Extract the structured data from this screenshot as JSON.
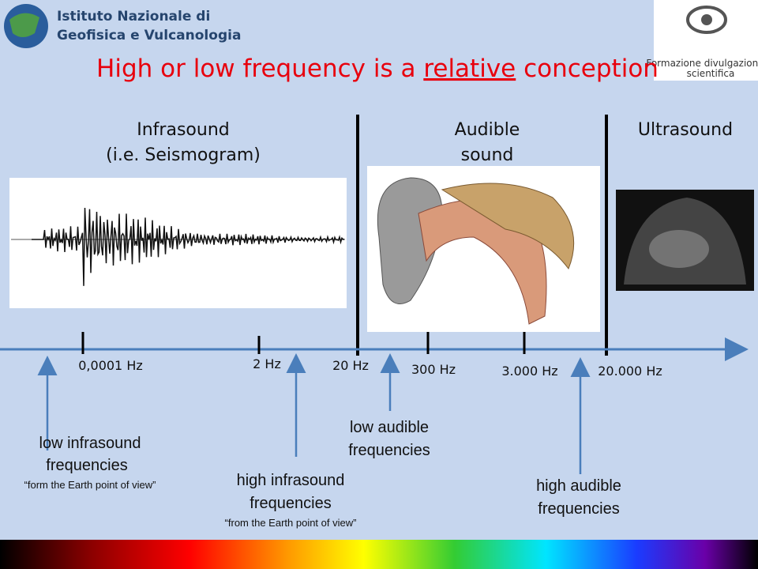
{
  "header": {
    "institute": [
      "Istituto Nazionale di",
      "Geofisica e Vulcanologia"
    ],
    "badge": [
      "Formazione divulgazione",
      "scientifica"
    ]
  },
  "title": {
    "before": "High or low frequency  is a ",
    "emphasis": "relative",
    "after": " conception"
  },
  "sections": [
    {
      "label": [
        "Infrasound",
        "(i.e. Seismogram)"
      ]
    },
    {
      "label": [
        "Audible",
        "sound"
      ]
    },
    {
      "label": [
        "Ultrasound"
      ]
    }
  ],
  "axis_labels": [
    "0,0001 Hz",
    "2 Hz",
    "20 Hz",
    "300 Hz",
    "3.000 Hz",
    "20.000 Hz"
  ],
  "annotations": [
    {
      "lines": [
        "low infrasound",
        "frequencies"
      ],
      "note": "“form the Earth point of view”"
    },
    {
      "lines": [
        "high infrasound",
        "frequencies"
      ],
      "note": "“from the Earth point of view”"
    },
    {
      "lines": [
        "low audible",
        "frequencies"
      ]
    },
    {
      "lines": [
        "high audible",
        "frequencies"
      ]
    }
  ]
}
